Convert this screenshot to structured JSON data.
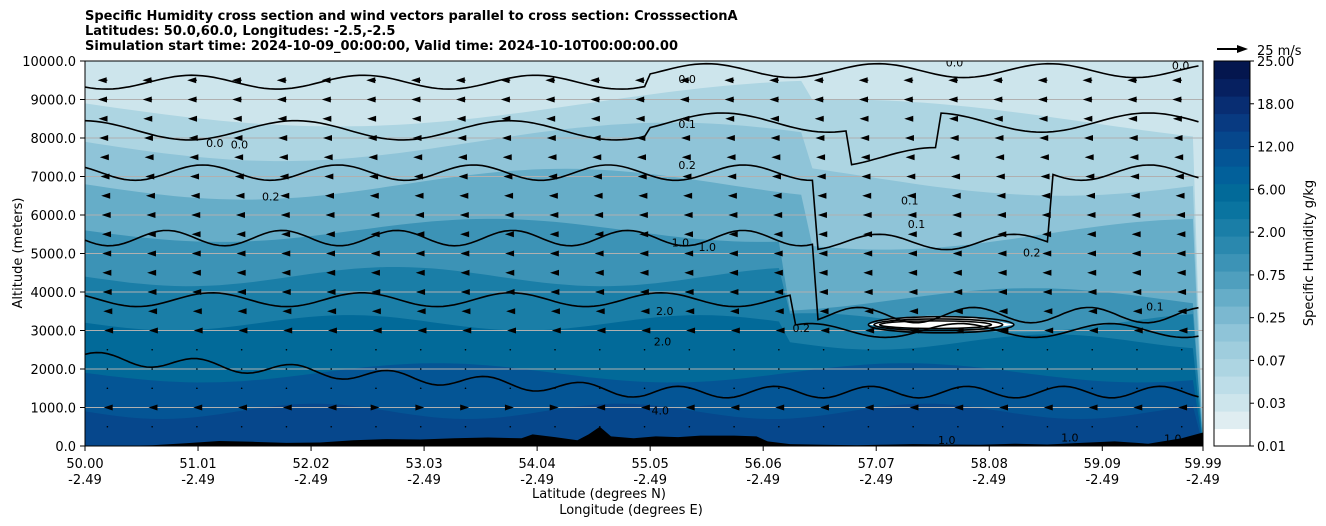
{
  "title": {
    "line1": "Specific Humidity cross section and wind vectors parallel to cross section: CrosssectionA",
    "line2": "Latitudes: 50.0,60.0, Longitudes: -2.5,-2.5",
    "line3": "Simulation start time: 2024-10-09_00:00:00, Valid time: 2024-10-10T00:00:00.00"
  },
  "quiver_key": {
    "label": "25 m/s"
  },
  "chart_data": {
    "type": "contourf",
    "ylabel": "Altitude (meters)",
    "xlabel_line1": "Latitude (degrees N)",
    "xlabel_line2": "Longitude (degrees E)",
    "xlim": [
      50.0,
      59.99
    ],
    "ylim": [
      0,
      10000
    ],
    "y_ticks": [
      0,
      1000,
      2000,
      3000,
      4000,
      5000,
      6000,
      7000,
      8000,
      9000,
      10000
    ],
    "y_tick_labels": [
      "0.0",
      "1000.0",
      "2000.0",
      "3000.0",
      "4000.0",
      "5000.0",
      "6000.0",
      "7000.0",
      "8000.0",
      "9000.0",
      "10000.0"
    ],
    "x_ticks": [
      50.0,
      51.01,
      52.02,
      53.03,
      54.04,
      55.05,
      56.06,
      57.07,
      58.08,
      59.09,
      59.99
    ],
    "x_tick_labels_lat": [
      "50.00",
      "51.01",
      "52.02",
      "53.03",
      "54.04",
      "55.05",
      "56.06",
      "57.07",
      "58.08",
      "59.09",
      "59.99"
    ],
    "x_tick_labels_lon": [
      "-2.49",
      "-2.49",
      "-2.49",
      "-2.49",
      "-2.49",
      "-2.49",
      "-2.49",
      "-2.49",
      "-2.49",
      "-2.49",
      "-2.49"
    ],
    "grid": "horizontal",
    "colorbar": {
      "label": "Specific Humidity g/kg",
      "levels": [
        0.01,
        0.02,
        0.03,
        0.05,
        0.07,
        0.1,
        0.15,
        0.25,
        0.35,
        0.5,
        0.75,
        1.0,
        1.5,
        2.0,
        3.0,
        4.0,
        6.0,
        8.0,
        12.0,
        15.0,
        18.0,
        20.0,
        25.0
      ],
      "tick_labels": [
        "0.01",
        "0.03",
        "0.07",
        "0.25",
        "0.75",
        "2.00",
        "6.00",
        "12.00",
        "18.00",
        "25.00"
      ],
      "colors": [
        "#ffffff",
        "#dfedf1",
        "#cde5ec",
        "#bddde8",
        "#add5e2",
        "#9fcddd",
        "#8fc4d8",
        "#7bb8d0",
        "#66adc8",
        "#4f9fbe",
        "#3c93b6",
        "#2a88ae",
        "#1a7ea7",
        "#0a74a0",
        "#026a99",
        "#02609a",
        "#045595",
        "#06478c",
        "#083a81",
        "#082d72",
        "#062060",
        "#04164e"
      ]
    },
    "contour_levels": [
      0.0,
      0.1,
      0.2,
      1.0,
      2.0,
      4.0
    ],
    "contour_labels": [
      {
        "text": "0.0",
        "lat": 55.38,
        "alt": 9530
      },
      {
        "text": "0.0",
        "lat": 57.77,
        "alt": 9960
      },
      {
        "text": "0.1",
        "lat": 55.38,
        "alt": 8370
      },
      {
        "text": "0.2",
        "lat": 55.38,
        "alt": 7300
      },
      {
        "text": "0.2",
        "lat": 51.66,
        "alt": 6480
      },
      {
        "text": "0.0",
        "lat": 51.16,
        "alt": 7870
      },
      {
        "text": "0.0",
        "lat": 51.38,
        "alt": 7830
      },
      {
        "text": "1.0",
        "lat": 55.32,
        "alt": 5280
      },
      {
        "text": "1.0",
        "lat": 55.56,
        "alt": 5170
      },
      {
        "text": "2.0",
        "lat": 55.18,
        "alt": 3510
      },
      {
        "text": "2.0",
        "lat": 55.16,
        "alt": 2710
      },
      {
        "text": "4.0",
        "lat": 55.14,
        "alt": 920
      },
      {
        "text": "0.1",
        "lat": 57.37,
        "alt": 6380
      },
      {
        "text": "0.1",
        "lat": 57.43,
        "alt": 5770
      },
      {
        "text": "0.2",
        "lat": 58.46,
        "alt": 5020
      },
      {
        "text": "0.2",
        "lat": 56.4,
        "alt": 3070
      },
      {
        "text": "0.1",
        "lat": 59.56,
        "alt": 3620
      },
      {
        "text": "0.0",
        "lat": 59.79,
        "alt": 9880
      },
      {
        "text": "1.0",
        "lat": 57.7,
        "alt": 160
      },
      {
        "text": "1.0",
        "lat": 58.8,
        "alt": 220
      },
      {
        "text": "1.0",
        "lat": 59.72,
        "alt": 200
      }
    ],
    "wind_vectors": {
      "description": "wind components parallel to cross section, drawn as arrows (negative = toward lower latitude)",
      "lat": [
        50.2,
        50.6,
        51.0,
        51.4,
        51.8,
        52.2,
        52.6,
        53.0,
        53.4,
        53.8,
        54.2,
        54.6,
        55.0,
        55.4,
        55.8,
        56.2,
        56.6,
        57.0,
        57.4,
        57.8,
        58.2,
        58.6,
        59.0,
        59.4,
        59.8
      ],
      "alt": [
        500,
        1000,
        1500,
        2000,
        2500,
        3000,
        3500,
        4000,
        4500,
        5000,
        5500,
        6000,
        6500,
        7000,
        7500,
        8000,
        8500,
        9000,
        9500
      ],
      "speed_profile_ms": [
        0.5,
        2.0,
        1.0,
        0.6,
        0.8,
        1.5,
        2.5,
        3.2,
        3.6,
        3.8,
        4.0,
        4.4,
        5.0,
        5.8,
        6.6,
        7.4,
        8.2,
        8.8,
        9.2
      ]
    },
    "terrain": {
      "lat": [
        50.0,
        50.3,
        50.6,
        50.9,
        51.2,
        51.5,
        51.8,
        52.1,
        52.4,
        52.7,
        53.0,
        53.3,
        53.6,
        53.9,
        54.0,
        54.2,
        54.4,
        54.5,
        54.6,
        54.7,
        54.9,
        55.1,
        55.3,
        55.5,
        55.8,
        56.0,
        56.1,
        56.3,
        56.6,
        56.9,
        57.1,
        57.4,
        57.7,
        58.0,
        58.3,
        58.6,
        58.9,
        59.2,
        59.5,
        59.8,
        59.99
      ],
      "height_m": [
        0,
        0,
        20,
        70,
        130,
        110,
        80,
        90,
        150,
        180,
        170,
        200,
        220,
        200,
        300,
        230,
        150,
        300,
        500,
        250,
        200,
        250,
        230,
        270,
        270,
        250,
        120,
        50,
        30,
        20,
        30,
        50,
        40,
        30,
        60,
        40,
        80,
        120,
        60,
        200,
        350
      ]
    }
  }
}
